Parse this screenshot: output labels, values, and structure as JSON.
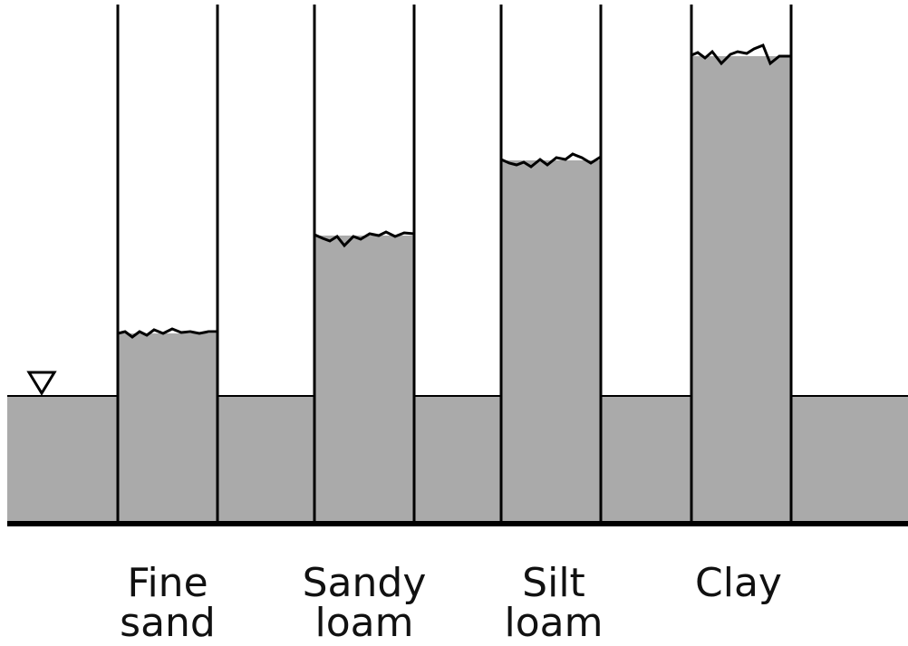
{
  "water_level_symbol": "water-table-triangle-icon",
  "colors": {
    "water": "#aaaaaa",
    "outline": "#000000",
    "background": "#ffffff"
  },
  "tubes": [
    {
      "id": "fine-sand",
      "label_line1": "Fine",
      "label_line2": "sand"
    },
    {
      "id": "sandy-loam",
      "label_line1": "Sandy",
      "label_line2": "loam"
    },
    {
      "id": "silt-loam",
      "label_line1": "Silt",
      "label_line2": "loam"
    },
    {
      "id": "clay",
      "label_line1": "Clay",
      "label_line2": ""
    }
  ]
}
